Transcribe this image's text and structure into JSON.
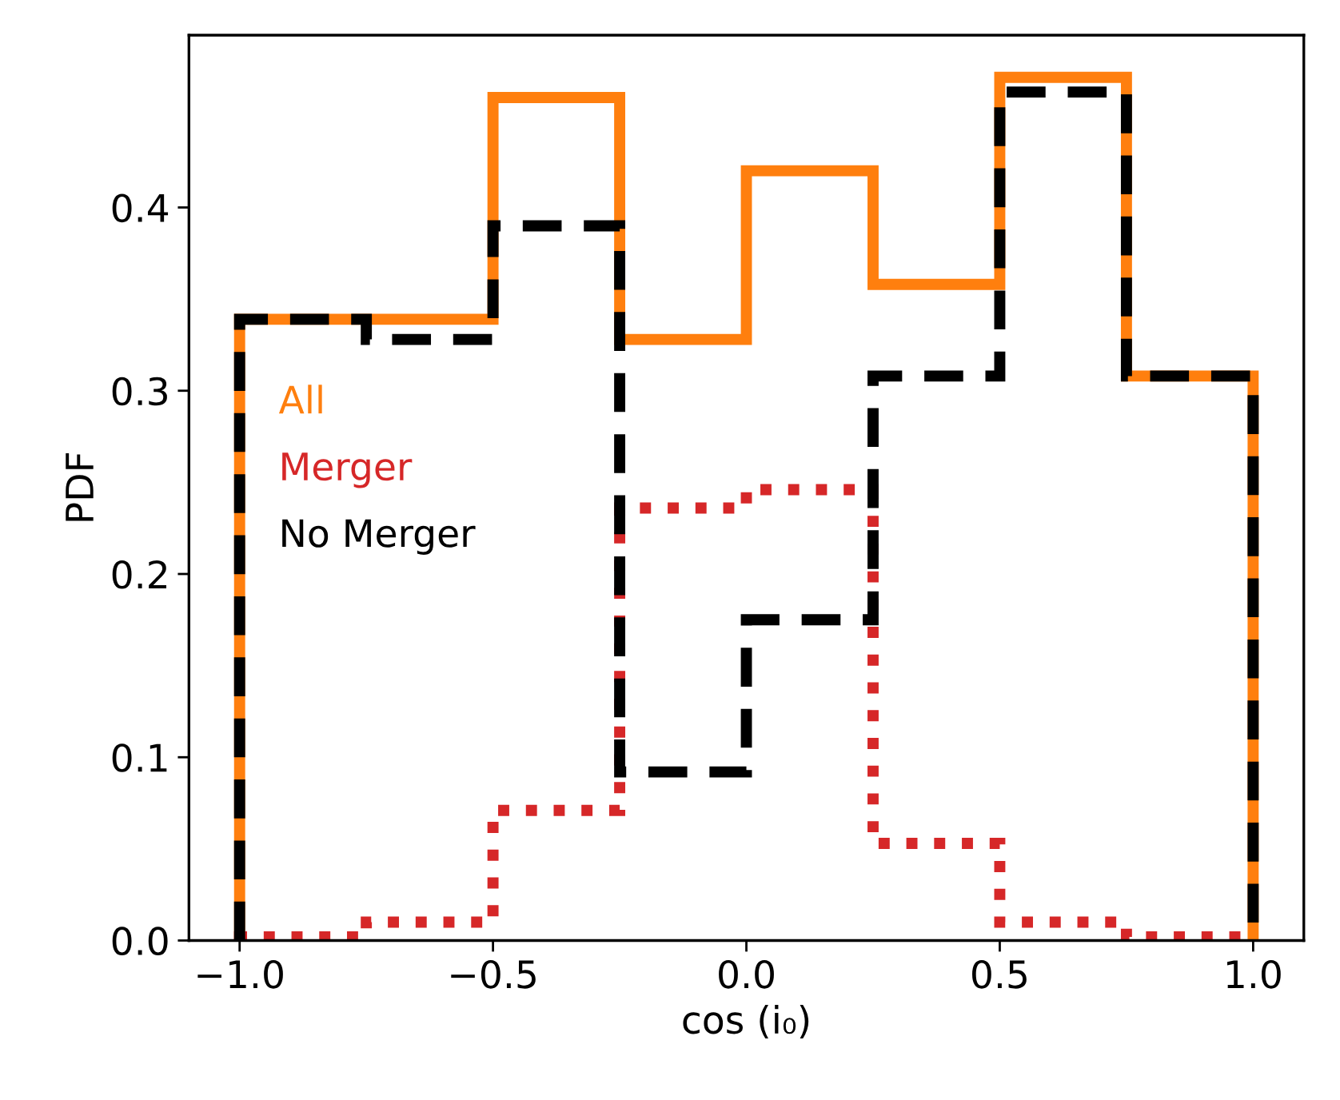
{
  "chart_data": {
    "type": "histogram",
    "xlabel": "cos (i₀)",
    "ylabel": "PDF",
    "bins": [
      -1.0,
      -0.75,
      -0.5,
      -0.25,
      0.0,
      0.25,
      0.5,
      0.75,
      1.0
    ],
    "series": [
      {
        "name": "All",
        "color": "#ff7f0e",
        "line_style": "solid",
        "values": [
          0.339,
          0.339,
          0.46,
          0.328,
          0.42,
          0.358,
          0.471,
          0.308
        ]
      },
      {
        "name": "Merger",
        "color": "#d62728",
        "line_style": "dotted",
        "values": [
          0.002,
          0.01,
          0.071,
          0.236,
          0.246,
          0.053,
          0.01,
          0.002
        ]
      },
      {
        "name": "No Merger",
        "color": "#000000",
        "line_style": "dashed",
        "values": [
          0.339,
          0.328,
          0.39,
          0.092,
          0.175,
          0.308,
          0.463,
          0.308
        ]
      }
    ],
    "xlim": [
      -1.1,
      1.1
    ],
    "ylim": [
      0,
      0.494
    ],
    "xticks": [
      {
        "value": -1.0,
        "label": "−1.0"
      },
      {
        "value": -0.5,
        "label": "−0.5"
      },
      {
        "value": 0.0,
        "label": "0.0"
      },
      {
        "value": 0.5,
        "label": "0.5"
      },
      {
        "value": 1.0,
        "label": "1.0"
      }
    ],
    "yticks": [
      {
        "value": 0.0,
        "label": "0.0"
      },
      {
        "value": 0.1,
        "label": "0.1"
      },
      {
        "value": 0.2,
        "label": "0.2"
      },
      {
        "value": 0.3,
        "label": "0.3"
      },
      {
        "value": 0.4,
        "label": "0.4"
      }
    ],
    "grid": false,
    "legend": "center left"
  }
}
